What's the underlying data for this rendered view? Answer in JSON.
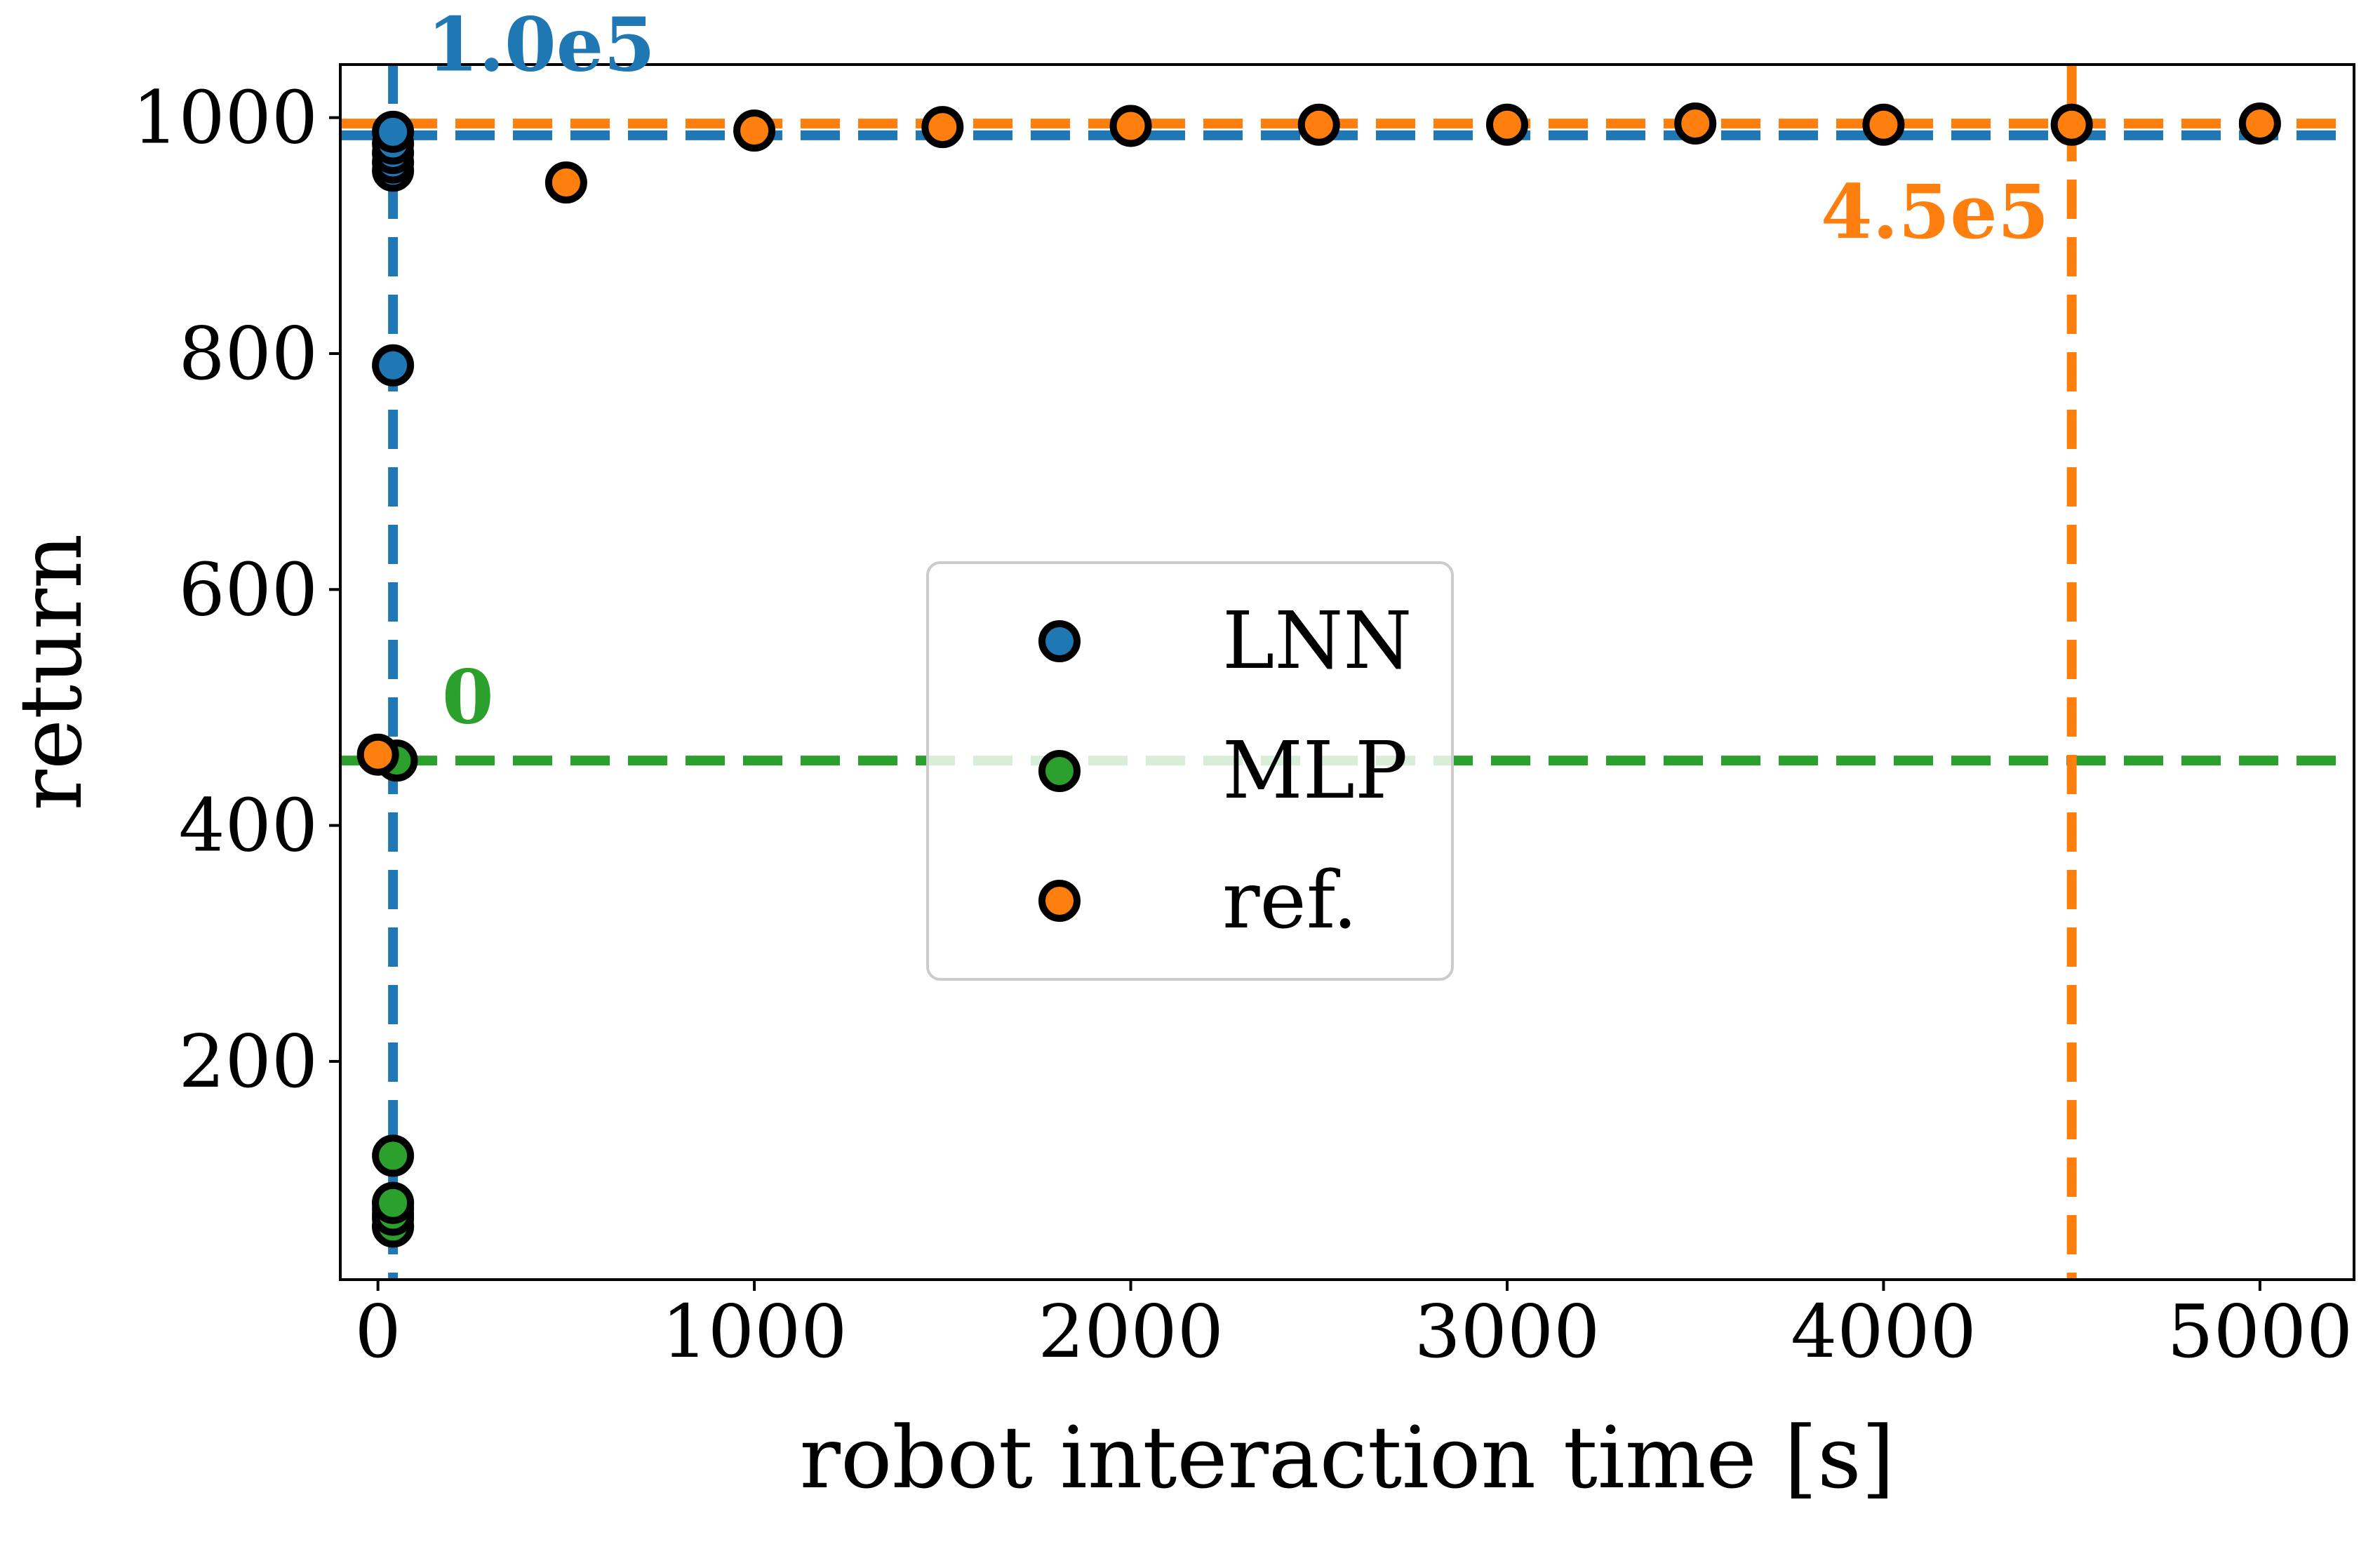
{
  "chart_data": {
    "type": "scatter",
    "title": "",
    "xlabel": "robot interaction time [s]",
    "ylabel": "return",
    "xlim": [
      -100,
      5250
    ],
    "ylim": [
      15,
      1045
    ],
    "x_ticks": [
      0,
      1000,
      2000,
      3000,
      4000,
      5000
    ],
    "y_ticks": [
      200,
      400,
      600,
      800,
      1000
    ],
    "grid": false,
    "legend_position": "center",
    "series": [
      {
        "name": "LNN",
        "color": "#1f77b4",
        "points": [
          [
            40,
            60
          ],
          [
            40,
            67
          ],
          [
            40,
            75
          ],
          [
            40,
            80
          ],
          [
            40,
            790
          ],
          [
            40,
            955
          ],
          [
            40,
            962
          ],
          [
            40,
            970
          ],
          [
            40,
            978
          ],
          [
            40,
            988
          ]
        ]
      },
      {
        "name": "MLP",
        "color": "#2ca02c",
        "points": [
          [
            40,
            60
          ],
          [
            40,
            70
          ],
          [
            40,
            80
          ],
          [
            40,
            120
          ],
          [
            50,
            455
          ]
        ]
      },
      {
        "name": "ref.",
        "color": "#ff7f0e",
        "points": [
          [
            0,
            460
          ],
          [
            500,
            945
          ],
          [
            1000,
            989
          ],
          [
            1500,
            992
          ],
          [
            2000,
            993
          ],
          [
            2500,
            994
          ],
          [
            3000,
            994
          ],
          [
            3500,
            995
          ],
          [
            4000,
            994
          ],
          [
            4500,
            994
          ],
          [
            5000,
            995
          ]
        ]
      }
    ],
    "reference_lines": [
      {
        "orientation": "horizontal",
        "value": 985,
        "color": "#1f77b4"
      },
      {
        "orientation": "horizontal",
        "value": 995,
        "color": "#ff7f0e"
      },
      {
        "orientation": "horizontal",
        "value": 455,
        "color": "#2ca02c"
      },
      {
        "orientation": "vertical",
        "value": 40,
        "color": "#1f77b4"
      },
      {
        "orientation": "vertical",
        "value": 4500,
        "color": "#ff7f0e"
      }
    ],
    "annotations": [
      {
        "text": "1.0e5",
        "x": 130,
        "y": 1040,
        "color": "#1f77b4",
        "anchor": "start"
      },
      {
        "text": "4.5e5",
        "x": 4440,
        "y": 898,
        "color": "#ff7f0e",
        "anchor": "end"
      },
      {
        "text": "0",
        "x": 170,
        "y": 487,
        "color": "#2ca02c",
        "anchor": "start"
      }
    ]
  }
}
